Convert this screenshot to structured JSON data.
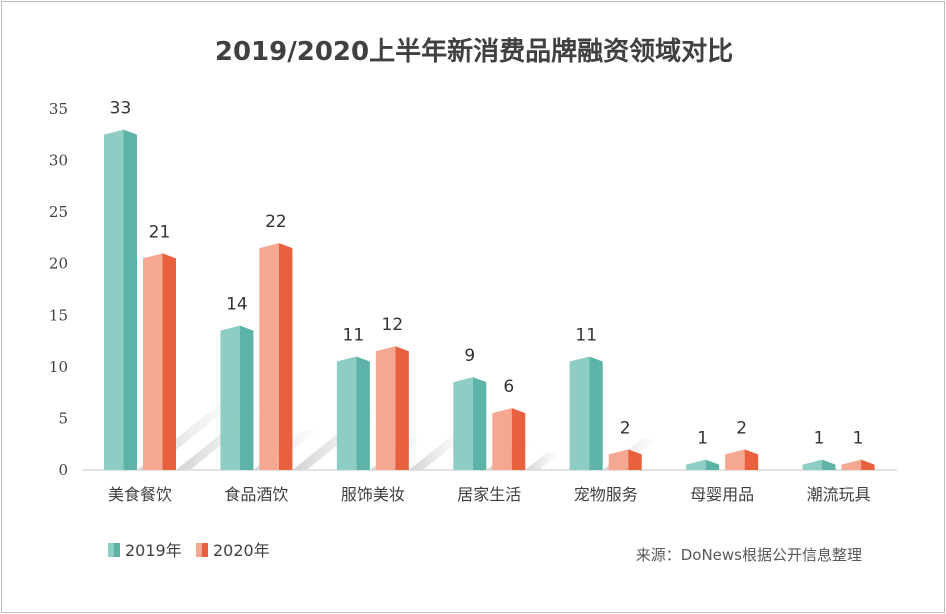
{
  "chart_data": {
    "type": "bar",
    "title": "2019/2020上半年新消费品牌融资领域对比",
    "categories": [
      "美食餐饮",
      "食品酒饮",
      "服饰美妆",
      "居家生活",
      "宠物服务",
      "母婴用品",
      "潮流玩具"
    ],
    "series": [
      {
        "name": "2019年",
        "values": [
          33,
          14,
          11,
          9,
          11,
          1,
          1
        ],
        "color": "#8ecdc4",
        "dark_color": "#5db3a8"
      },
      {
        "name": "2020年",
        "values": [
          21,
          22,
          12,
          6,
          2,
          2,
          1
        ],
        "color": "#f4a791",
        "dark_color": "#e8603e"
      }
    ],
    "ylim": [
      0,
      35
    ],
    "yticks": [
      0,
      5,
      10,
      15,
      20,
      25,
      30,
      35
    ],
    "grid": false,
    "legend_position": "bottom-left",
    "source": "来源：DoNews根据公开信息整理"
  }
}
